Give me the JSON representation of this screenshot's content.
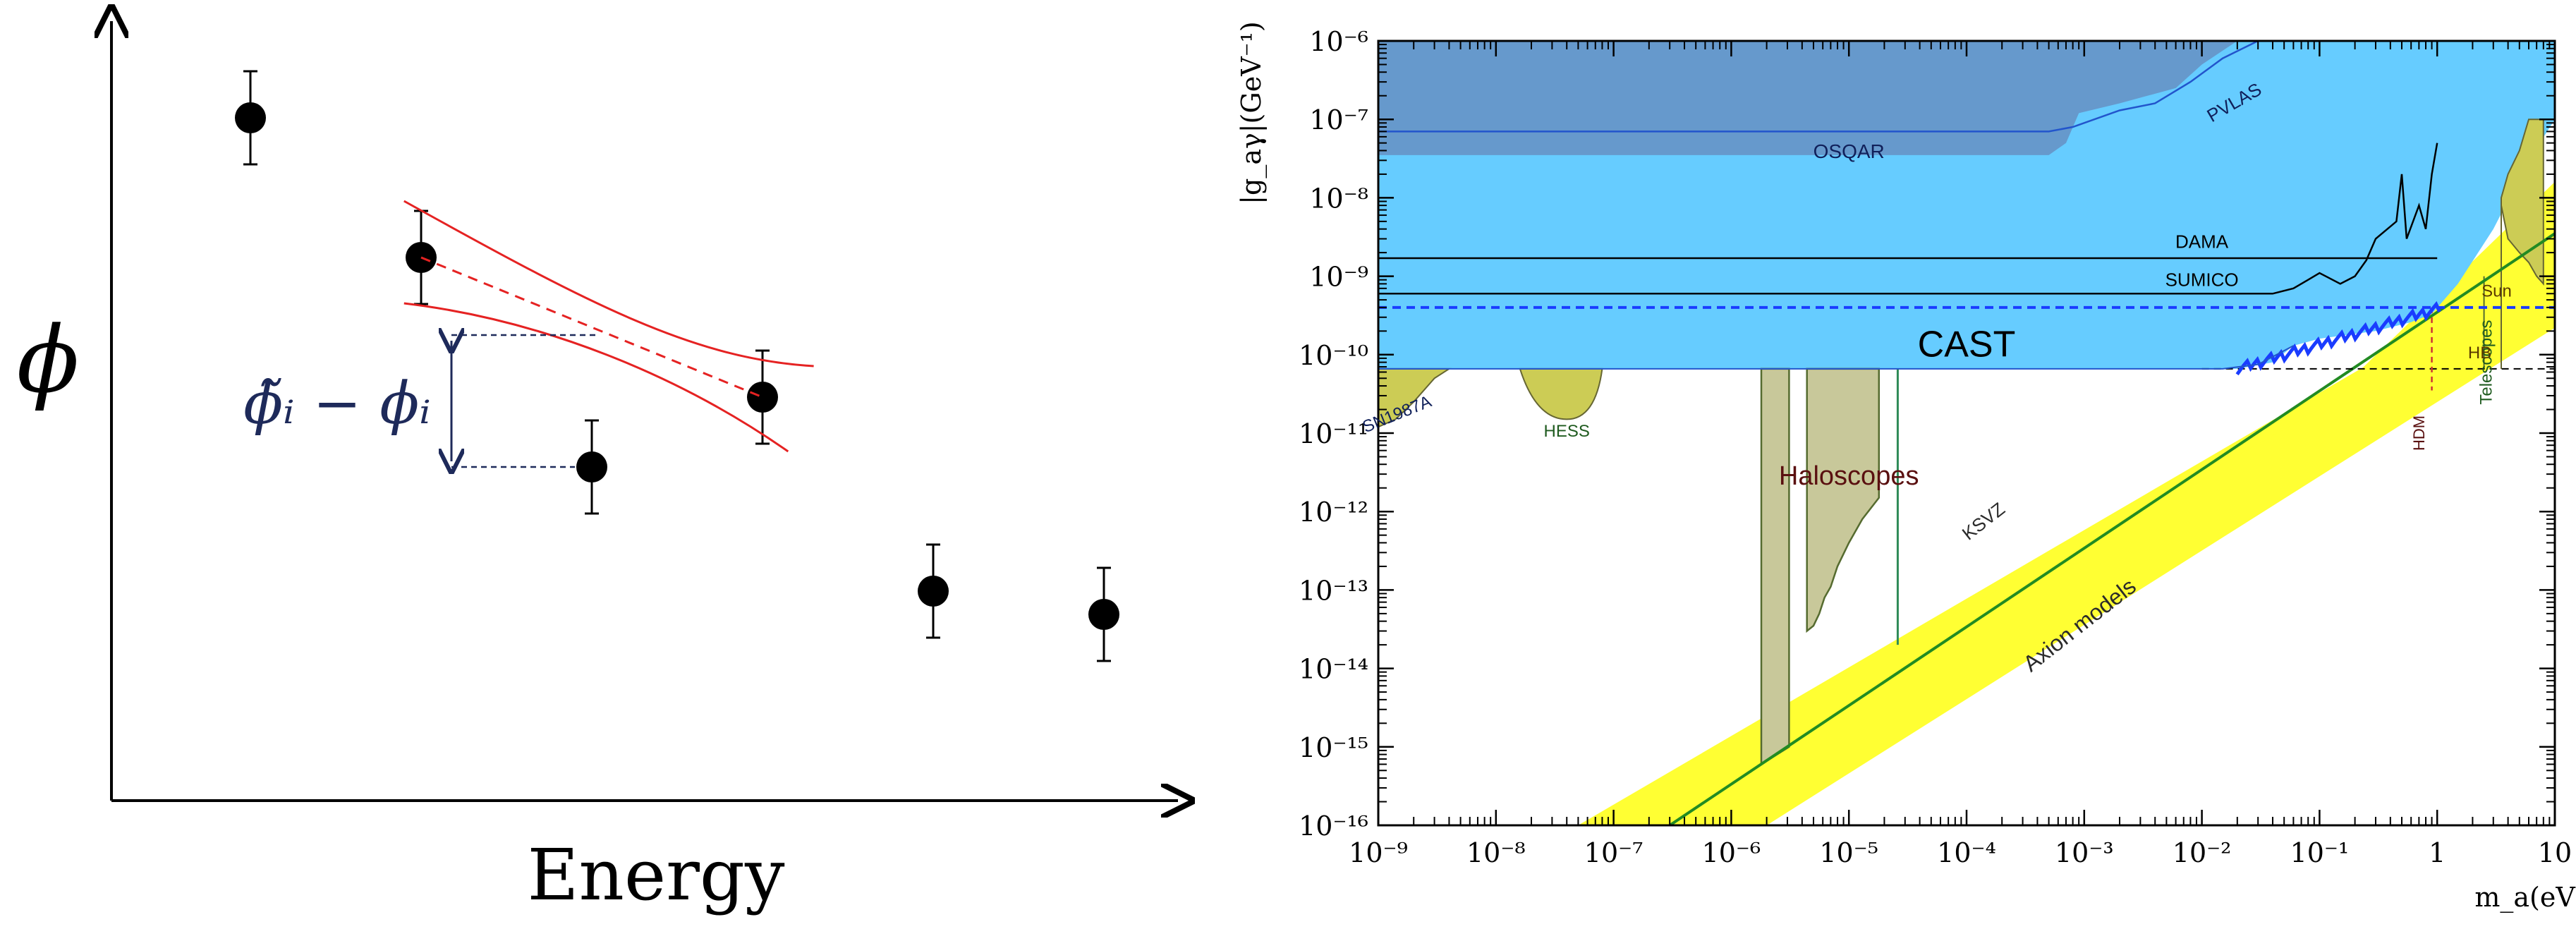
{
  "chart_data": [
    {
      "type": "scatter",
      "title": "",
      "xlabel": "Energy",
      "ylabel": "ϕ",
      "grid": false,
      "points": [
        {
          "x": 1,
          "y": 0.88,
          "err": 0.06
        },
        {
          "x": 2,
          "y": 0.7,
          "err": 0.06
        },
        {
          "x": 3,
          "y": 0.43,
          "err": 0.06
        },
        {
          "x": 4,
          "y": 0.52,
          "err": 0.06
        },
        {
          "x": 5,
          "y": 0.27,
          "err": 0.06
        },
        {
          "x": 6,
          "y": 0.24,
          "err": 0.06
        }
      ],
      "annotation": "ϕ̃ᵢ − ϕᵢ",
      "fit_band": {
        "x_start": 1.9,
        "x_end": 4.3,
        "y_start": 0.7,
        "y_end": 0.52
      }
    },
    {
      "type": "area",
      "title": "",
      "xlabel": "m_a(eV)",
      "ylabel": "|g_aγ|(GeV⁻¹)",
      "xscale": "log",
      "yscale": "log",
      "xlim": [
        1e-09,
        10
      ],
      "ylim": [
        1e-16,
        1e-06
      ],
      "x_ticks": [
        "10⁻⁹",
        "10⁻⁸",
        "10⁻⁷",
        "10⁻⁶",
        "10⁻⁵",
        "10⁻⁴",
        "10⁻³",
        "10⁻²",
        "10⁻¹",
        "1",
        "10"
      ],
      "y_ticks": [
        "10⁻¹⁶",
        "10⁻¹⁵",
        "10⁻¹⁴",
        "10⁻¹³",
        "10⁻¹²",
        "10⁻¹¹",
        "10⁻¹⁰",
        "10⁻⁹",
        "10⁻⁸",
        "10⁻⁷",
        "10⁻⁶"
      ],
      "region_labels": [
        "PVLAS",
        "OSQAR",
        "DAMA",
        "SUMICO",
        "CAST",
        "SN1987A",
        "HESS",
        "Haloscopes",
        "KSVZ",
        "Axion models",
        "HDM",
        "Telescopes",
        "HB",
        "Sun"
      ],
      "limits": {
        "CAST": 6.6e-11,
        "SUMICO": 6e-10,
        "Sun": 4e-10,
        "DAMA": 1.7e-09,
        "OSQAR": 3.5e-08,
        "PVLAS": 7e-08,
        "HB": 6.6e-11
      },
      "colors": {
        "excluded": "#66ccff",
        "osqar_pvlas": "#6699cc",
        "axion_band": "#ffff33",
        "ksvz_line": "#228b22",
        "astro_olive": "#cccc55",
        "haloscope": "#c8c89a",
        "cast_curve": "#1a3cff"
      }
    }
  ]
}
